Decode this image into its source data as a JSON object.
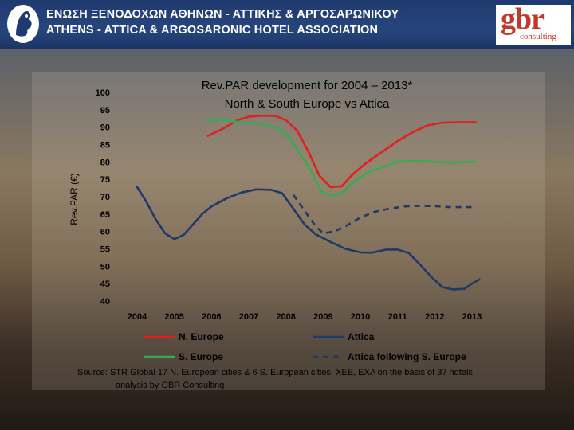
{
  "header": {
    "association_greek": "ΕΝΩΣΗ ΞΕΝΟΔΟΧΩΝ ΑΘΗΝΩΝ - ΑΤΤΙΚΗΣ & ΑΡΓΟΣΑΡΩΝΙΚΟΥ",
    "association_english": "ATHENS - ATTICA & ARGOSARONIC HOTEL ASSOCIATION",
    "gbr_logo": "gbr",
    "gbr_logo_sub": "consulting"
  },
  "chart_data": {
    "type": "line",
    "title": "Rev.PAR development for 2004 – 2013*",
    "subtitle": "North & South Europe vs Attica",
    "ylabel": "Rev.PAR (€)",
    "xlabel": "",
    "ylim": [
      40,
      100
    ],
    "yticks": [
      "40",
      "45",
      "50",
      "55",
      "60",
      "65",
      "70",
      "75",
      "80",
      "85",
      "90",
      "95",
      "100"
    ],
    "xlim": [
      2004,
      2013
    ],
    "xticks": [
      "2004",
      "2005",
      "2006",
      "2007",
      "2008",
      "2009",
      "2010",
      "2011",
      "2012",
      "2013"
    ],
    "grid": false,
    "legend_position": "bottom",
    "colors": {
      "n_europe": "#e02020",
      "s_europe": "#3aaa52",
      "attica": "#1f3a66",
      "attica_following": "#1f3a66"
    },
    "series": [
      {
        "name": "N. Europe",
        "style": "solid",
        "points": [
          [
            2005.9,
            87.5
          ],
          [
            2006.3,
            89.5
          ],
          [
            2006.7,
            92
          ],
          [
            2007.0,
            93
          ],
          [
            2007.3,
            93.3
          ],
          [
            2007.7,
            93.3
          ],
          [
            2008.0,
            92
          ],
          [
            2008.3,
            89
          ],
          [
            2008.6,
            83
          ],
          [
            2008.9,
            76
          ],
          [
            2009.2,
            72.8
          ],
          [
            2009.5,
            73
          ],
          [
            2009.8,
            76.5
          ],
          [
            2010.2,
            80
          ],
          [
            2010.6,
            83
          ],
          [
            2011.0,
            86
          ],
          [
            2011.4,
            88.5
          ],
          [
            2011.8,
            90.5
          ],
          [
            2012.2,
            91.3
          ],
          [
            2012.6,
            91.4
          ],
          [
            2013.0,
            91.4
          ],
          [
            2013.1,
            91.4
          ]
        ]
      },
      {
        "name": "S. Europe",
        "style": "solid",
        "points": [
          [
            2005.9,
            92
          ],
          [
            2006.3,
            92
          ],
          [
            2006.7,
            91.5
          ],
          [
            2007.0,
            91.3
          ],
          [
            2007.4,
            90.8
          ],
          [
            2007.8,
            89.6
          ],
          [
            2008.1,
            87
          ],
          [
            2008.4,
            82
          ],
          [
            2008.7,
            77
          ],
          [
            2008.95,
            71.5
          ],
          [
            2009.2,
            70.2
          ],
          [
            2009.5,
            71
          ],
          [
            2009.8,
            74
          ],
          [
            2010.2,
            77
          ],
          [
            2010.6,
            78.5
          ],
          [
            2011.0,
            80
          ],
          [
            2011.4,
            80.3
          ],
          [
            2011.8,
            80.2
          ],
          [
            2012.2,
            79.8
          ],
          [
            2012.6,
            79.8
          ],
          [
            2013.0,
            80
          ],
          [
            2013.1,
            80
          ]
        ]
      },
      {
        "name": "Attica",
        "style": "solid",
        "points": [
          [
            2004.0,
            72.8
          ],
          [
            2004.25,
            68.5
          ],
          [
            2004.5,
            63.5
          ],
          [
            2004.75,
            59.5
          ],
          [
            2005.0,
            57.8
          ],
          [
            2005.25,
            59
          ],
          [
            2005.5,
            62
          ],
          [
            2005.75,
            65
          ],
          [
            2006.0,
            67.2
          ],
          [
            2006.4,
            69.5
          ],
          [
            2006.8,
            71.2
          ],
          [
            2007.2,
            72.1
          ],
          [
            2007.6,
            72
          ],
          [
            2007.9,
            71
          ],
          [
            2008.2,
            66.5
          ],
          [
            2008.5,
            62
          ],
          [
            2008.8,
            59.2
          ],
          [
            2009.2,
            57
          ],
          [
            2009.6,
            55
          ],
          [
            2010.0,
            54
          ],
          [
            2010.3,
            53.9
          ],
          [
            2010.7,
            54.8
          ],
          [
            2011.0,
            54.8
          ],
          [
            2011.3,
            53.8
          ],
          [
            2011.6,
            50.5
          ],
          [
            2011.9,
            47
          ],
          [
            2012.2,
            44
          ],
          [
            2012.5,
            43.3
          ],
          [
            2012.8,
            43.5
          ],
          [
            2013.0,
            45
          ],
          [
            2013.2,
            46.2
          ]
        ]
      },
      {
        "name": "Attica following S. Europe",
        "style": "dashed",
        "points": [
          [
            2008.2,
            70.5
          ],
          [
            2008.5,
            66
          ],
          [
            2008.8,
            61.5
          ],
          [
            2009.0,
            59.5
          ],
          [
            2009.3,
            60
          ],
          [
            2009.6,
            61.5
          ],
          [
            2010.0,
            64
          ],
          [
            2010.4,
            65.7
          ],
          [
            2010.8,
            66.6
          ],
          [
            2011.2,
            67.2
          ],
          [
            2011.6,
            67.4
          ],
          [
            2012.0,
            67.3
          ],
          [
            2012.4,
            67
          ],
          [
            2012.8,
            67
          ],
          [
            2013.0,
            67
          ]
        ]
      }
    ],
    "source_line1": "Source: STR Global 17 N. European cities & 6 S. European cities, XEE, EXA on the basis of 37 hotels,",
    "source_line2": "analysis by GBR Consulting"
  }
}
